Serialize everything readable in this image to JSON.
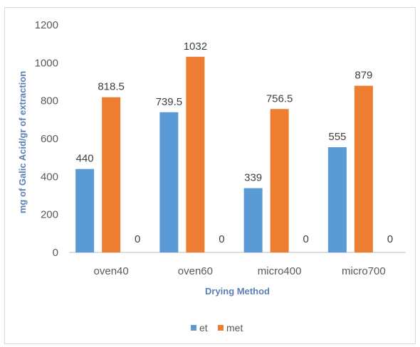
{
  "chart_data": {
    "type": "bar",
    "title": "",
    "xlabel": "Drying Method",
    "ylabel": "mg of Galic Acid/gr of extraction",
    "categories": [
      "oven40",
      "oven60",
      "micro400",
      "micro700"
    ],
    "series": [
      {
        "name": "et",
        "values": [
          440,
          739.5,
          339,
          555
        ],
        "labels": [
          "440",
          "739.5",
          "339",
          "555"
        ],
        "color": "#5b9bd5"
      },
      {
        "name": "met",
        "values": [
          818.5,
          1032,
          756.5,
          879
        ],
        "labels": [
          "818.5",
          "1032",
          "756.5",
          "879"
        ],
        "color": "#ed7d31"
      },
      {
        "name": "",
        "values": [
          0,
          0,
          0,
          0
        ],
        "labels": [
          "0",
          "0",
          "0",
          "0"
        ],
        "color": "#a5a5a5"
      }
    ],
    "ylim": [
      0,
      1200
    ],
    "yticks": [
      0,
      200,
      400,
      600,
      800,
      1000,
      1200
    ],
    "grid": false,
    "legend": "bottom"
  }
}
